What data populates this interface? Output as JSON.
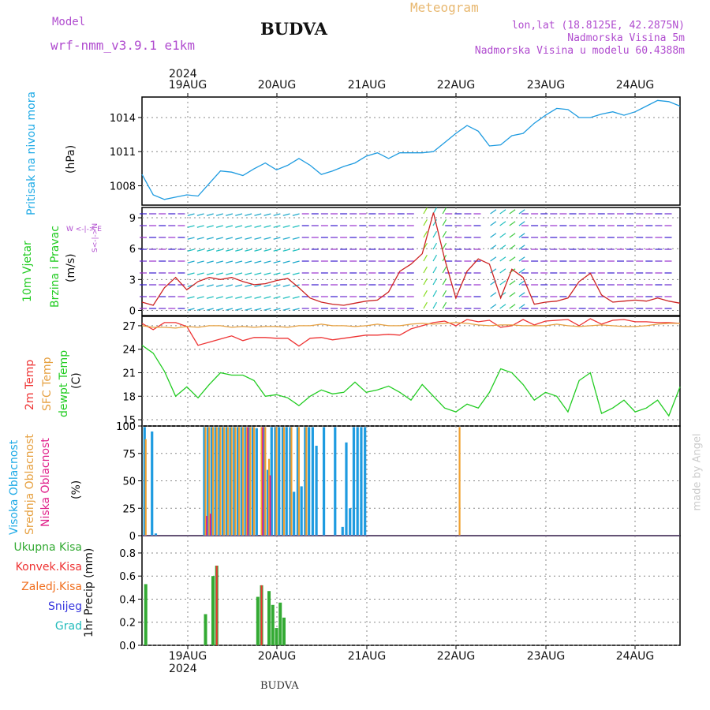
{
  "header": {
    "model_label": "Model",
    "model_name": "wrf-nmm_v3.9.1 e1km",
    "title": "BUDVA",
    "meteogram": "Meteogram",
    "lonlat": "lon,lat (18.8125E, 42.2875N)",
    "elevation": "Nadmorska Visina 5m",
    "model_elevation": "Nadmorska Visina u modelu 60.4388m",
    "footer_title": "BUDVA",
    "watermark": "made by Angel"
  },
  "time_axis": {
    "year": "2024",
    "days": [
      "19AUG",
      "20AUG",
      "21AUG",
      "22AUG",
      "23AUG",
      "24AUG"
    ]
  },
  "colors": {
    "pressure": "#1e9be0",
    "temp2m": "#ee3333",
    "sfc": "#e6a040",
    "dewpt": "#22cc22",
    "high_cloud": "#1e9be0",
    "mid_cloud": "#f0a030",
    "low_cloud": "#e0208a",
    "precip_total": "#33aa33",
    "precip_conv": "#ee3333",
    "wind_speed": "#cc2222",
    "wind_dir": "#000000"
  },
  "panel_labels": {
    "pressure": "Pritisak na nivou mora",
    "pressure_unit": "(hPa)",
    "wind": "10m Vjetar",
    "wind2": "Brzina i Pravac",
    "wind_unit": "(m/s)",
    "wind_compass1": "W  <-|->  E",
    "wind_compass2": "S<-|->N",
    "temp_2m": "2m Temp",
    "temp_sfc": "SFC Temp",
    "temp_dew": "dewpt Temp",
    "temp_unit": "(C)",
    "cloud_high": "Visoka Oblacnost",
    "cloud_mid": "Srednja Oblacnost",
    "cloud_low": "Niska Oblacnost",
    "cloud_unit": "(%)",
    "precip_unit": "1hr Precip (mm)"
  },
  "precip_legend": [
    "Ukupna Kisa",
    "Konvek.Kisa",
    "Zaledj.Kisa",
    "Snijeg",
    "Grad"
  ],
  "precip_legend_colors": [
    "#33aa33",
    "#ee3333",
    "#f07020",
    "#3333dd",
    "#22bbbb"
  ],
  "chart_data": [
    {
      "type": "line",
      "name": "pressure",
      "ylim": [
        1006.3,
        1015.8
      ],
      "ticks": [
        1008,
        1011,
        1014
      ],
      "x": [
        0,
        3,
        6,
        9,
        12,
        15,
        18,
        21,
        24,
        27,
        30,
        33,
        36,
        39,
        42,
        45,
        48,
        51,
        54,
        57,
        60,
        63,
        66,
        69,
        72,
        75,
        78,
        81,
        84,
        87,
        90,
        93,
        96,
        99,
        102,
        105,
        108,
        111,
        114,
        117,
        120,
        123,
        126,
        129,
        132,
        135,
        138,
        141,
        144
      ],
      "values": [
        1009.0,
        1007.2,
        1006.8,
        1007.0,
        1007.2,
        1007.1,
        1008.2,
        1009.3,
        1009.2,
        1008.9,
        1009.5,
        1010.0,
        1009.4,
        1009.8,
        1010.4,
        1009.8,
        1009.0,
        1009.3,
        1009.7,
        1010.0,
        1010.6,
        1010.9,
        1010.4,
        1010.9,
        1010.9,
        1010.9,
        1011.0,
        1011.8,
        1012.6,
        1013.3,
        1012.8,
        1011.5,
        1011.6,
        1012.4,
        1012.6,
        1013.5,
        1014.2,
        1014.8,
        1014.7,
        1014.0,
        1014.0,
        1014.3,
        1014.5,
        1014.2,
        1014.5,
        1015.0,
        1015.5,
        1015.4,
        1015.0
      ]
    },
    {
      "type": "line",
      "name": "wind",
      "ylim": [
        -0.5,
        10
      ],
      "ticks": [
        0,
        3,
        6,
        9
      ],
      "x": [
        0,
        3,
        6,
        9,
        12,
        15,
        18,
        21,
        24,
        27,
        30,
        33,
        36,
        39,
        42,
        45,
        48,
        51,
        54,
        57,
        60,
        63,
        66,
        69,
        72,
        75,
        78,
        81,
        84,
        87,
        90,
        93,
        96,
        99,
        102,
        105,
        108,
        111,
        114,
        117,
        120,
        123,
        126,
        129,
        132,
        135,
        138,
        141,
        144
      ],
      "values": [
        0.8,
        0.5,
        2.2,
        3.2,
        2.0,
        2.8,
        3.2,
        3.0,
        3.2,
        2.8,
        2.5,
        2.6,
        2.9,
        3.1,
        2.2,
        1.2,
        0.8,
        0.6,
        0.5,
        0.7,
        0.9,
        1.0,
        1.8,
        3.8,
        4.5,
        5.5,
        9.5,
        5.0,
        1.2,
        3.8,
        5.0,
        4.5,
        1.2,
        4.0,
        3.2,
        0.6,
        0.8,
        0.9,
        1.2,
        2.8,
        3.6,
        1.5,
        0.8,
        0.9,
        1.0,
        0.9,
        1.2,
        0.9,
        0.7
      ]
    },
    {
      "type": "line",
      "name": "temperature",
      "ylim": [
        14.2,
        28.2
      ],
      "ticks": [
        15,
        18,
        21,
        24,
        27
      ],
      "series": [
        {
          "name": "2m Temp",
          "x": [
            0,
            3,
            6,
            9,
            12,
            15,
            18,
            21,
            24,
            27,
            30,
            33,
            36,
            39,
            42,
            45,
            48,
            51,
            54,
            57,
            60,
            63,
            66,
            69,
            72,
            75,
            78,
            81,
            84,
            87,
            90,
            93,
            96,
            99,
            102,
            105,
            108,
            111,
            114,
            117,
            120,
            123,
            126,
            129,
            132,
            135,
            138,
            141,
            144
          ],
          "values": [
            27.3,
            26.5,
            27.4,
            27.4,
            26.9,
            24.5,
            24.9,
            25.3,
            25.7,
            25.1,
            25.5,
            25.5,
            25.4,
            25.4,
            24.4,
            25.4,
            25.5,
            25.2,
            25.4,
            25.6,
            25.8,
            25.8,
            25.9,
            25.8,
            26.6,
            27.0,
            27.4,
            27.6,
            27.0,
            27.8,
            27.5,
            27.7,
            26.8,
            27.0,
            27.8,
            27.1,
            27.6,
            27.7,
            27.8,
            27.0,
            27.9,
            27.2,
            27.7,
            27.8,
            27.5,
            27.5,
            27.4,
            27.4,
            27.3
          ]
        },
        {
          "name": "SFC Temp",
          "x": [
            0,
            3,
            6,
            9,
            12,
            15,
            18,
            21,
            24,
            27,
            30,
            33,
            36,
            39,
            42,
            45,
            48,
            51,
            54,
            57,
            60,
            63,
            66,
            69,
            72,
            75,
            78,
            81,
            84,
            87,
            90,
            93,
            96,
            99,
            102,
            105,
            108,
            111,
            114,
            117,
            120,
            123,
            126,
            129,
            132,
            135,
            138,
            141,
            144
          ],
          "values": [
            27.0,
            26.8,
            26.8,
            26.7,
            26.9,
            26.8,
            27.0,
            27.0,
            26.8,
            26.9,
            26.8,
            26.9,
            26.9,
            26.8,
            27.0,
            27.0,
            27.2,
            27.0,
            27.0,
            26.9,
            27.0,
            27.2,
            27.0,
            27.0,
            27.2,
            27.3,
            27.2,
            27.3,
            27.4,
            27.3,
            27.1,
            27.0,
            27.1,
            27.1,
            27.0,
            27.0,
            27.0,
            27.2,
            27.0,
            26.9,
            27.0,
            27.1,
            27.0,
            26.9,
            26.9,
            27.0,
            27.2,
            27.3,
            27.3
          ]
        },
        {
          "name": "dewpt Temp",
          "x": [
            0,
            3,
            6,
            9,
            12,
            15,
            18,
            21,
            24,
            27,
            30,
            33,
            36,
            39,
            42,
            45,
            48,
            51,
            54,
            57,
            60,
            63,
            66,
            69,
            72,
            75,
            78,
            81,
            84,
            87,
            90,
            93,
            96,
            99,
            102,
            105,
            108,
            111,
            114,
            117,
            120,
            123,
            126,
            129,
            132,
            135,
            138,
            141,
            144
          ],
          "values": [
            24.5,
            23.5,
            21.2,
            18.0,
            19.2,
            17.8,
            19.5,
            21.0,
            20.7,
            20.7,
            20.0,
            18.0,
            18.2,
            17.8,
            16.8,
            18.0,
            18.8,
            18.3,
            18.5,
            19.8,
            18.5,
            18.8,
            19.3,
            18.5,
            17.5,
            19.5,
            18.0,
            16.5,
            16.0,
            17.0,
            16.5,
            18.5,
            21.5,
            21.0,
            19.5,
            17.5,
            18.5,
            18.0,
            16.0,
            20.0,
            21.0,
            15.8,
            16.5,
            17.5,
            16.0,
            16.5,
            17.5,
            15.5,
            19.2
          ]
        }
      ]
    },
    {
      "type": "bar",
      "name": "cloud",
      "ylim": [
        0,
        100
      ],
      "ticks": [
        0,
        25,
        50,
        75,
        100
      ],
      "series": [
        {
          "name": "Visoka Oblacnost",
          "x": [
            1,
            3,
            4,
            17,
            18,
            19,
            20,
            21,
            22,
            23,
            24,
            25,
            26,
            27,
            28,
            29,
            30,
            31,
            33,
            34,
            35,
            36,
            37,
            38,
            39,
            40,
            41,
            42,
            43,
            44,
            45,
            46,
            47,
            49,
            52,
            54,
            55,
            56,
            57,
            58,
            59,
            60
          ],
          "values": [
            99,
            95,
            2,
            99,
            99,
            99,
            99,
            99,
            99,
            99,
            99,
            99,
            99,
            99,
            99,
            99,
            99,
            98,
            99,
            60,
            99,
            99,
            99,
            99,
            99,
            99,
            40,
            99,
            45,
            99,
            99,
            99,
            82,
            99,
            99,
            8,
            85,
            25,
            99,
            99,
            99,
            99
          ]
        },
        {
          "name": "Srednja Oblacnost",
          "x": [
            1,
            17,
            18,
            19,
            20,
            21,
            22,
            23,
            24,
            25,
            26,
            27,
            28,
            29,
            30,
            32,
            33,
            34,
            36,
            38,
            40,
            42,
            44,
            85
          ],
          "values": [
            88,
            99,
            99,
            99,
            99,
            99,
            99,
            99,
            99,
            99,
            99,
            99,
            99,
            99,
            99,
            99,
            99,
            70,
            99,
            99,
            99,
            99,
            99,
            99
          ]
        },
        {
          "name": "Niska Oblacnost",
          "x": [
            17,
            18,
            28,
            32,
            34
          ],
          "values": [
            18,
            20,
            99,
            99,
            55
          ]
        }
      ]
    },
    {
      "type": "bar",
      "name": "precip",
      "ylim": [
        0,
        0.95
      ],
      "ticks": [
        0,
        0.2,
        0.4,
        0.6,
        0.8
      ],
      "series": [
        {
          "name": "Ukupna Kisa",
          "x": [
            1,
            17,
            19,
            20,
            31,
            32,
            34,
            35,
            36,
            37,
            38
          ],
          "values": [
            0.53,
            0.27,
            0.6,
            0.69,
            0.42,
            0.52,
            0.47,
            0.35,
            0.15,
            0.37,
            0.24
          ]
        },
        {
          "name": "Konvek.Kisa",
          "x": [
            20,
            32
          ],
          "values": [
            0.69,
            0.52
          ]
        }
      ]
    }
  ],
  "cloud_hourly_max": 144,
  "y_tick_format": {
    "pressure": "0",
    "wind": "0",
    "temperature": "0",
    "cloud": "0",
    "precip": "1"
  }
}
